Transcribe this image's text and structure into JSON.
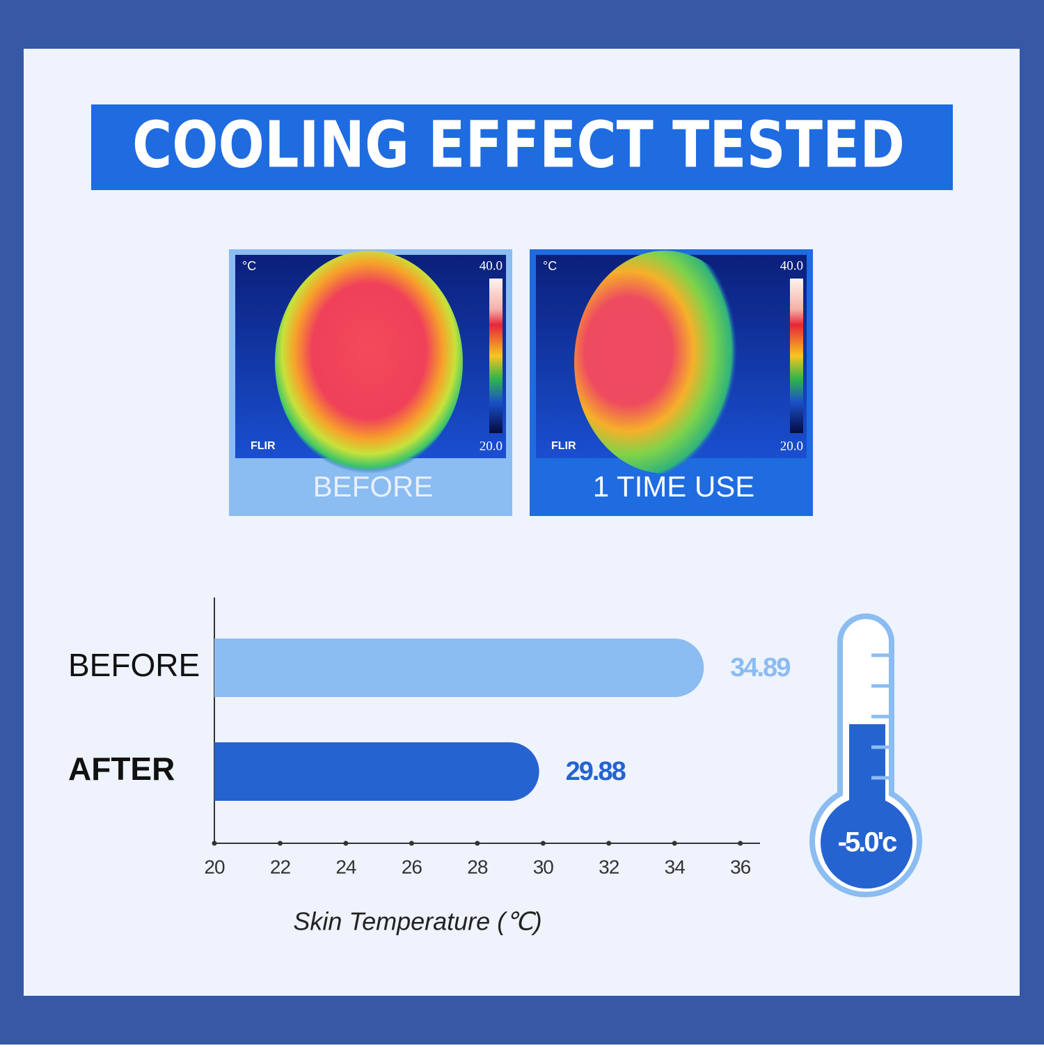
{
  "title": "COOLING EFFECT TESTED",
  "panels": [
    {
      "unit": "°C",
      "max": "40.0",
      "min": "20.0",
      "brand": "FLIR",
      "caption": "BEFORE"
    },
    {
      "unit": "°C",
      "max": "40.0",
      "min": "20.0",
      "brand": "FLIR",
      "caption": "1 TIME USE"
    }
  ],
  "chart_data": {
    "type": "hbar",
    "categories": [
      "BEFORE",
      "AFTER"
    ],
    "values": [
      34.89,
      29.88
    ],
    "colors": [
      "#8bbcf2",
      "#2563d0"
    ],
    "xlim": [
      20,
      36.6
    ],
    "xticks": [
      20,
      22,
      24,
      26,
      28,
      30,
      32,
      34,
      36
    ],
    "xlabel": "Skin Temperature (℃)"
  },
  "thermometer_label": "-5.0'c"
}
